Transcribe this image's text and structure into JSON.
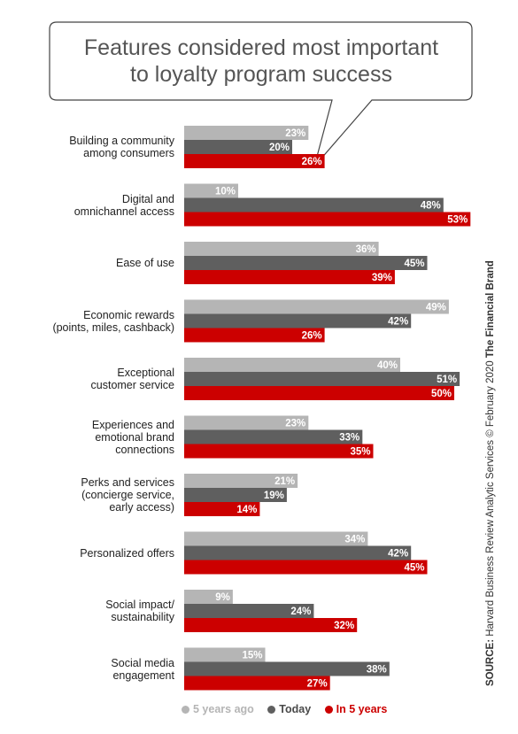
{
  "chart_data": {
    "type": "bar",
    "orientation": "horizontal",
    "title": "Features considered most important to loyalty program success",
    "categories": [
      "Building a community among consumers",
      "Digital and omnichannel access",
      "Ease of use",
      "Economic rewards (points, miles, cashback)",
      "Exceptional customer service",
      "Experiences and emotional brand connections",
      "Perks and services (concierge service, early access)",
      "Personalized offers",
      "Social impact/ sustainability",
      "Social media engagement"
    ],
    "category_lines": [
      [
        "Building a community",
        "among consumers"
      ],
      [
        "Digital and",
        "omnichannel access"
      ],
      [
        "Ease of use"
      ],
      [
        "Economic rewards",
        "(points, miles, cashback)"
      ],
      [
        "Exceptional",
        "customer service"
      ],
      [
        "Experiences and",
        "emotional brand",
        "connections"
      ],
      [
        "Perks and services",
        "(concierge service,",
        "early access)"
      ],
      [
        "Personalized offers"
      ],
      [
        "Social impact/",
        "sustainability"
      ],
      [
        "Social media",
        "engagement"
      ]
    ],
    "series": [
      {
        "name": "5 years ago",
        "color": "#b5b5b5",
        "values": [
          23,
          10,
          36,
          49,
          40,
          23,
          21,
          34,
          9,
          15
        ]
      },
      {
        "name": "Today",
        "color": "#5f5f5f",
        "values": [
          20,
          48,
          45,
          42,
          51,
          33,
          19,
          42,
          24,
          38
        ]
      },
      {
        "name": "In 5 years",
        "color": "#cc0000",
        "values": [
          26,
          53,
          39,
          26,
          50,
          35,
          14,
          45,
          32,
          27
        ]
      }
    ],
    "value_suffix": "%",
    "legend_position": "bottom",
    "grid": false
  },
  "title_lines": [
    "Features considered most important",
    "to loyalty program success"
  ],
  "source": {
    "label": "SOURCE:",
    "text": " Harvard Business Review Analytic Services © February 2020 ",
    "brand": "The Financial Brand"
  }
}
